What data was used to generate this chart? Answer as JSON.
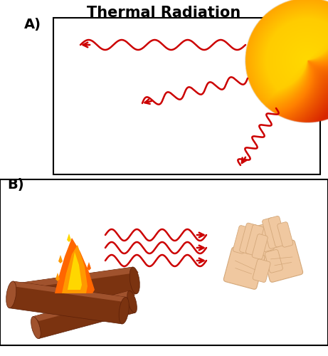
{
  "title": "Thermal Radiation",
  "title_fontsize": 15,
  "title_fontweight": "bold",
  "background_color": "#ffffff",
  "wave_color": "#cc0000",
  "wave_linewidth": 1.8,
  "panel_a_label": "A)",
  "panel_b_label": "B)",
  "label_fontsize": 14,
  "label_fontweight": "bold",
  "sun_gradient_stops": [
    "#FFD700",
    "#FF8800",
    "#DD2200"
  ],
  "log_color_main": "#7B3310",
  "log_color_highlight": "#A0522D",
  "log_color_dark": "#5C2008",
  "flame_orange": "#FF6600",
  "flame_yellow": "#FFD700",
  "flame_amber": "#FF9900",
  "skin_color": "#F0C8A0",
  "skin_outline": "#D4A87A"
}
